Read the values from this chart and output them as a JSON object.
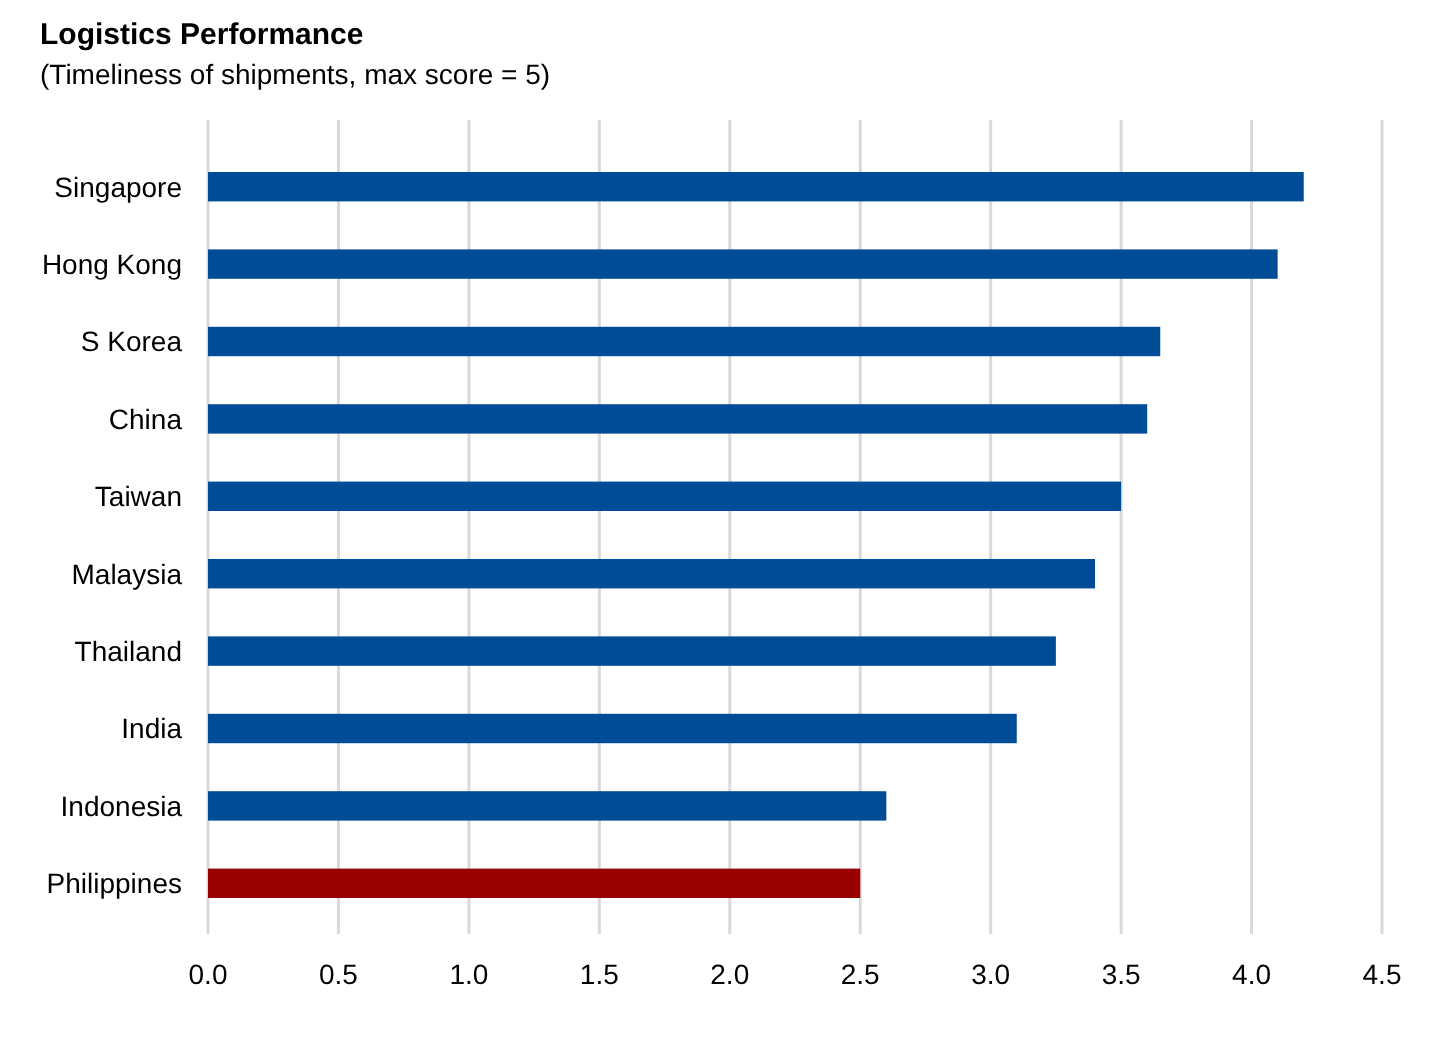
{
  "chart_data": {
    "type": "bar",
    "orientation": "horizontal",
    "title": "Logistics Performance",
    "subtitle": "(Timeliness of shipments, max score = 5)",
    "categories": [
      "Singapore",
      "Hong Kong",
      "S Korea",
      "China",
      "Taiwan",
      "Malaysia",
      "Thailand",
      "India",
      "Indonesia",
      "Philippines"
    ],
    "values": [
      4.2,
      4.1,
      3.65,
      3.6,
      3.5,
      3.4,
      3.25,
      3.1,
      2.6,
      2.5
    ],
    "colors": [
      "#004c97",
      "#004c97",
      "#004c97",
      "#004c97",
      "#004c97",
      "#004c97",
      "#004c97",
      "#004c97",
      "#004c97",
      "#990000"
    ],
    "xlim": [
      0,
      4.5
    ],
    "xticks": [
      {
        "value": 0,
        "label": "0.0"
      },
      0.5,
      {
        "value": 1,
        "label": "1.0"
      },
      1.5,
      {
        "value": 2,
        "label": "2.0"
      },
      2.5,
      {
        "value": 3,
        "label": "3.0"
      },
      3.5,
      {
        "value": 4,
        "label": "4.0"
      },
      4.5
    ],
    "grid": "x"
  }
}
